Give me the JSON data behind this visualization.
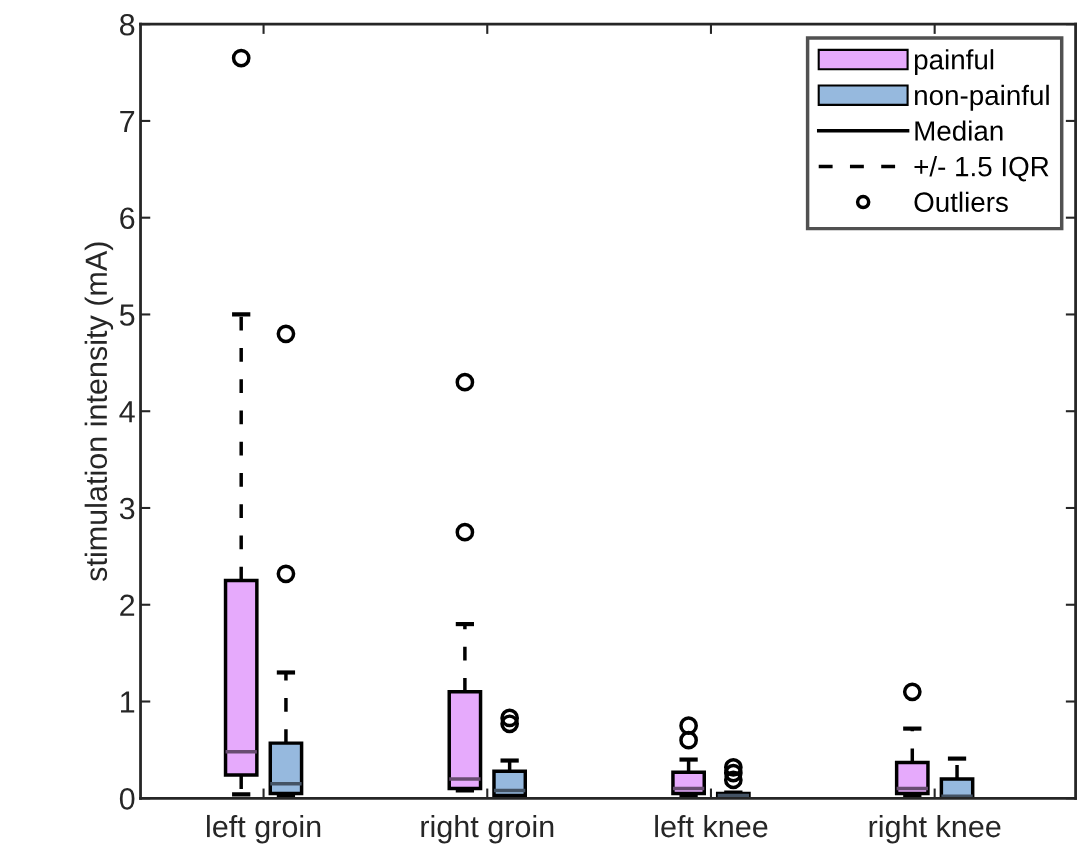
{
  "chart_data": {
    "type": "box",
    "ylabel": "stimulation intensity (mA)",
    "categories": [
      "left groin",
      "right groin",
      "left knee",
      "right knee"
    ],
    "ylim": [
      0,
      8
    ],
    "yticks": [
      0,
      1,
      2,
      3,
      4,
      5,
      6,
      7,
      8
    ],
    "legend": "top right",
    "grid": false,
    "line_style": "dashed",
    "marker": "circle",
    "annotations": [
      "Median",
      "+/- 1.5 IQR",
      "Outliers"
    ],
    "series": [
      {
        "name": "painful",
        "color": "#e6aafc",
        "boxes": [
          {
            "low": 0.04,
            "q1": 0.24,
            "median": 0.48,
            "q3": 2.25,
            "high": 5.0,
            "outliers": [
              7.65
            ]
          },
          {
            "low": 0.08,
            "q1": 0.1,
            "median": 0.2,
            "q3": 1.1,
            "high": 1.8,
            "outliers": [
              4.3,
              2.75
            ]
          },
          {
            "low": 0.03,
            "q1": 0.05,
            "median": 0.1,
            "q3": 0.27,
            "high": 0.4,
            "outliers": [
              0.75,
              0.6
            ]
          },
          {
            "low": 0.03,
            "q1": 0.05,
            "median": 0.1,
            "q3": 0.37,
            "high": 0.72,
            "outliers": [
              1.1
            ]
          }
        ]
      },
      {
        "name": "non-painful",
        "color": "#96b9de",
        "boxes": [
          {
            "low": 0.02,
            "q1": 0.05,
            "median": 0.15,
            "q3": 0.57,
            "high": 1.3,
            "outliers": [
              4.8,
              2.32
            ]
          },
          {
            "low": 0.02,
            "q1": 0.03,
            "median": 0.08,
            "q3": 0.28,
            "high": 0.39,
            "outliers": [
              0.83,
              0.77
            ]
          },
          {
            "low": 0.0,
            "q1": 0.01,
            "median": 0.03,
            "q3": 0.05,
            "high": 0.06,
            "outliers": [
              0.32,
              0.26,
              0.19
            ]
          },
          {
            "low": 0.0,
            "q1": 0.01,
            "median": 0.02,
            "q3": 0.2,
            "high": 0.41
          }
        ]
      }
    ]
  }
}
